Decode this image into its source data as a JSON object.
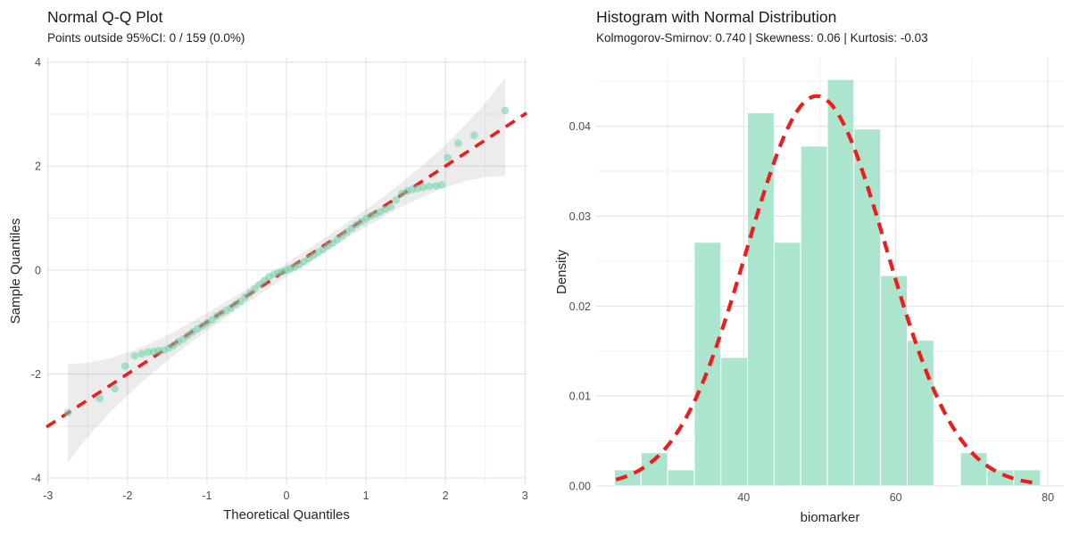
{
  "figure": {
    "background": "#ffffff"
  },
  "colors": {
    "point_fill": "#69d3a7",
    "bar_fill": "#ace5ce",
    "bar_border": "#ffffff",
    "reference_red": "#ee1c1c",
    "ci_band_gray": "#7f7f7f",
    "grid_major": "#e2e2e2",
    "grid_minor": "#efefef",
    "tick_text": "#4d4d4d",
    "title_text": "#1a1a1a"
  },
  "chart_data": [
    {
      "id": "qq",
      "type": "scatter",
      "title": "Normal Q-Q Plot",
      "subtitle": "Points outside 95%CI: 0 / 159 (0.0%)",
      "xlabel": "Theoretical Quantiles",
      "ylabel": "Sample Quantiles",
      "x_ticks": [
        -3,
        -2,
        -1,
        0,
        1,
        2,
        3
      ],
      "y_ticks": [
        4,
        2,
        0,
        -2,
        -4
      ],
      "x_minor_ticks": [
        -2.5,
        -1.5,
        -0.5,
        0.5,
        1.5,
        2.5
      ],
      "y_minor_ticks": [
        -3,
        -1,
        1,
        3
      ],
      "xlim": [
        -3.02,
        3.02
      ],
      "ylim": [
        -4.12,
        4.08
      ],
      "grid": true,
      "legend": "none",
      "sample_n": 159,
      "stats": {
        "points_outside_95ci": "0 / 159 (0.0%)"
      },
      "reference_line": {
        "slope": 1,
        "intercept": 0,
        "style": "dashed",
        "x_range": [
          -3.02,
          3.02
        ]
      },
      "confidence_band": {
        "level": "95%",
        "x_range": [
          -2.75,
          2.75
        ],
        "half_width_poly": {
          "c0": 0.13,
          "c2": 0.028,
          "c4": 0.0105
        }
      },
      "points": [
        [
          -2.75,
          -2.74
        ],
        [
          -2.35,
          -2.47
        ],
        [
          -2.16,
          -2.28
        ],
        [
          -2.03,
          -1.85
        ],
        [
          -1.91,
          -1.65
        ],
        [
          -1.82,
          -1.61
        ],
        [
          -1.74,
          -1.58
        ],
        [
          -1.67,
          -1.57
        ],
        [
          -1.61,
          -1.55
        ],
        [
          -1.54,
          -1.54
        ],
        [
          -1.48,
          -1.5
        ],
        [
          -1.42,
          -1.45
        ],
        [
          -1.36,
          -1.38
        ],
        [
          -1.3,
          -1.33
        ],
        [
          -1.24,
          -1.26
        ],
        [
          -1.18,
          -1.19
        ],
        [
          -1.12,
          -1.13
        ],
        [
          -1.06,
          -1.08
        ],
        [
          -1.0,
          -1.02
        ],
        [
          -0.94,
          -0.96
        ],
        [
          -0.88,
          -0.89
        ],
        [
          -0.82,
          -0.83
        ],
        [
          -0.76,
          -0.78
        ],
        [
          -0.7,
          -0.73
        ],
        [
          -0.64,
          -0.66
        ],
        [
          -0.58,
          -0.6
        ],
        [
          -0.52,
          -0.52
        ],
        [
          -0.46,
          -0.44
        ],
        [
          -0.4,
          -0.36
        ],
        [
          -0.34,
          -0.28
        ],
        [
          -0.28,
          -0.2
        ],
        [
          -0.22,
          -0.13
        ],
        [
          -0.16,
          -0.08
        ],
        [
          -0.1,
          -0.05
        ],
        [
          -0.05,
          -0.03
        ],
        [
          0.0,
          0.0
        ],
        [
          0.05,
          0.03
        ],
        [
          0.1,
          0.06
        ],
        [
          0.16,
          0.1
        ],
        [
          0.22,
          0.16
        ],
        [
          0.28,
          0.22
        ],
        [
          0.34,
          0.28
        ],
        [
          0.4,
          0.34
        ],
        [
          0.46,
          0.4
        ],
        [
          0.52,
          0.46
        ],
        [
          0.58,
          0.52
        ],
        [
          0.64,
          0.59
        ],
        [
          0.7,
          0.66
        ],
        [
          0.76,
          0.73
        ],
        [
          0.82,
          0.8
        ],
        [
          0.88,
          0.87
        ],
        [
          0.94,
          0.93
        ],
        [
          1.0,
          0.99
        ],
        [
          1.06,
          1.04
        ],
        [
          1.12,
          1.08
        ],
        [
          1.18,
          1.12
        ],
        [
          1.24,
          1.17
        ],
        [
          1.31,
          1.22
        ],
        [
          1.38,
          1.35
        ],
        [
          1.45,
          1.47
        ],
        [
          1.52,
          1.52
        ],
        [
          1.58,
          1.55
        ],
        [
          1.65,
          1.57
        ],
        [
          1.72,
          1.59
        ],
        [
          1.8,
          1.61
        ],
        [
          1.88,
          1.62
        ],
        [
          1.95,
          1.64
        ],
        [
          2.03,
          2.16
        ],
        [
          2.16,
          2.44
        ],
        [
          2.36,
          2.59
        ],
        [
          2.75,
          3.07
        ]
      ]
    },
    {
      "id": "hist",
      "type": "bar",
      "title": "Histogram with Normal Distribution",
      "subtitle": "Kolmogorov-Smirnov: 0.740 | Skewness: 0.06 | Kurtosis: -0.03",
      "xlabel": "biomarker",
      "ylabel": "Density",
      "x_ticks": [
        40,
        60,
        80
      ],
      "y_ticks": [
        "0.00",
        "0.01",
        "0.02",
        "0.03",
        "0.04"
      ],
      "y_tick_values": [
        0,
        0.01,
        0.02,
        0.03,
        0.04
      ],
      "x_minor_ticks": [
        30,
        50,
        70
      ],
      "y_minor_ticks": [
        0.005,
        0.015,
        0.025,
        0.035,
        0.045
      ],
      "xlim": [
        20.6,
        82.1
      ],
      "ylim": [
        0,
        0.0476
      ],
      "grid": true,
      "legend": "none",
      "stats": {
        "kolmogorov_smirnov": "0.740",
        "skewness": "0.06",
        "kurtosis": "-0.03"
      },
      "bars": [
        {
          "from": 23.0,
          "to": 26.5,
          "density": 0.0018
        },
        {
          "from": 26.5,
          "to": 30.0,
          "density": 0.0037
        },
        {
          "from": 30.0,
          "to": 33.5,
          "density": 0.0018
        },
        {
          "from": 33.5,
          "to": 37.0,
          "density": 0.0271
        },
        {
          "from": 37.0,
          "to": 40.5,
          "density": 0.0143
        },
        {
          "from": 40.5,
          "to": 44.0,
          "density": 0.0415
        },
        {
          "from": 44.0,
          "to": 47.5,
          "density": 0.0271
        },
        {
          "from": 47.5,
          "to": 51.0,
          "density": 0.0378
        },
        {
          "from": 51.0,
          "to": 54.5,
          "density": 0.0452
        },
        {
          "from": 54.5,
          "to": 58.0,
          "density": 0.0397
        },
        {
          "from": 58.0,
          "to": 61.5,
          "density": 0.0234
        },
        {
          "from": 61.5,
          "to": 65.0,
          "density": 0.0162
        },
        {
          "from": 68.5,
          "to": 72.0,
          "density": 0.0037
        },
        {
          "from": 72.0,
          "to": 75.5,
          "density": 0.0018
        },
        {
          "from": 75.5,
          "to": 79.0,
          "density": 0.0018
        }
      ],
      "normal_curve": {
        "mean": 49.6,
        "sd": 9.2,
        "peak_density": 0.0434,
        "style": "dashed",
        "x_range": [
          23.2,
          78.8
        ]
      }
    }
  ]
}
